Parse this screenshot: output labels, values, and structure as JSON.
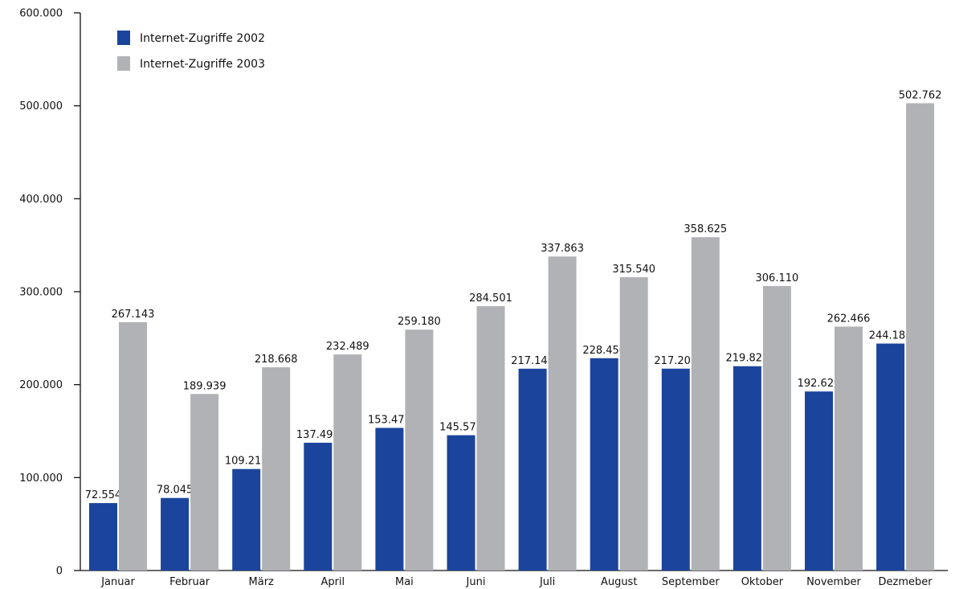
{
  "chart_data": {
    "type": "bar",
    "categories": [
      "Januar",
      "Februar",
      "März",
      "April",
      "Mai",
      "Juni",
      "Juli",
      "August",
      "September",
      "Oktober",
      "November",
      "Dezmeber"
    ],
    "series": [
      {
        "name": "Internet-Zugriffe 2002",
        "color": "#1b449c",
        "values": [
          72554,
          78045,
          109211,
          137495,
          153473,
          145575,
          217143,
          228450,
          217203,
          219821,
          192628,
          244184
        ],
        "labels": [
          "72.554",
          "78.045",
          "109.211",
          "137.495",
          "153.473",
          "145.575",
          "217.143",
          "228.450",
          "217.203",
          "219.821",
          "192.628",
          "244.184"
        ]
      },
      {
        "name": "Internet-Zugriffe 2003",
        "color": "#b1b2b6",
        "values": [
          267143,
          189939,
          218668,
          232489,
          259180,
          284501,
          337863,
          315540,
          358625,
          306110,
          262466,
          502762
        ],
        "labels": [
          "267.143",
          "189.939",
          "218.668",
          "232.489",
          "259.180",
          "284.501",
          "337.863",
          "315.540",
          "358.625",
          "306.110",
          "262.466",
          "502.762"
        ]
      }
    ],
    "ylim": [
      0,
      600000
    ],
    "yticks": [
      0,
      100000,
      200000,
      300000,
      400000,
      500000,
      600000
    ],
    "ytick_labels": [
      "0",
      "100.000",
      "200.000",
      "300.000",
      "400.000",
      "500.000",
      "600.000"
    ],
    "grid": false,
    "legend_position": "top-left"
  }
}
